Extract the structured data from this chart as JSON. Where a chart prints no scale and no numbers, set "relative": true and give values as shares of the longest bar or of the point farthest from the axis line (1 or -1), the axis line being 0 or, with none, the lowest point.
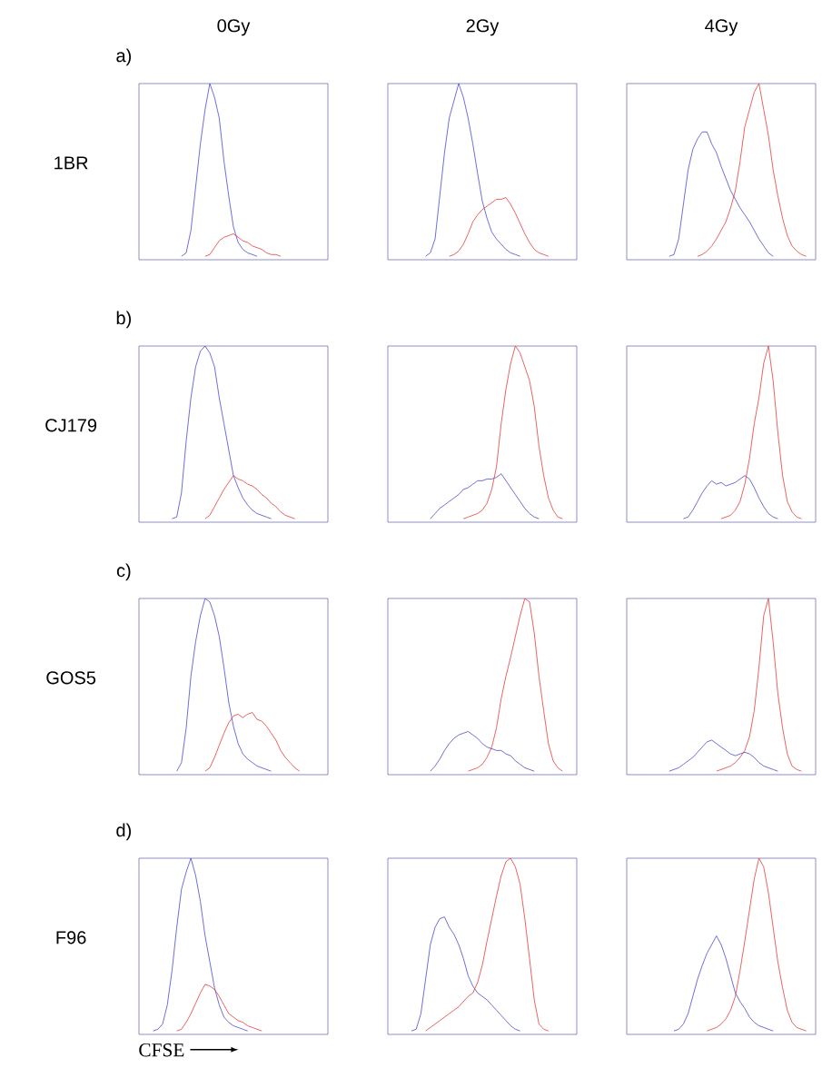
{
  "chart_data": [
    {
      "type": "line",
      "relative": true,
      "title": "0Gy",
      "annotations": [
        "a)",
        "1BR"
      ],
      "categories": [
        null,
        null,
        null,
        null,
        null,
        null,
        null,
        null,
        null,
        null,
        null,
        null,
        null,
        null,
        null,
        null,
        null,
        null,
        null,
        null,
        null,
        null,
        null,
        null,
        null,
        null,
        null,
        null,
        null,
        null,
        null,
        null,
        null,
        null,
        null,
        null,
        null,
        null,
        null,
        null,
        null
      ],
      "series": [
        {
          "color": "#4a4ad0",
          "values": [
            null,
            null,
            null,
            null,
            null,
            null,
            null,
            null,
            null,
            0,
            0.02,
            0.15,
            0.4,
            0.65,
            0.85,
            1,
            0.92,
            0.8,
            0.55,
            0.35,
            0.17,
            0.08,
            0.04,
            0.02,
            0.01,
            0,
            null,
            null,
            null,
            null,
            null,
            null,
            null,
            null,
            null,
            null,
            null,
            null,
            null,
            null,
            null
          ]
        },
        {
          "color": "#e23c3c",
          "values": [
            null,
            null,
            null,
            null,
            null,
            null,
            null,
            null,
            null,
            null,
            null,
            null,
            null,
            null,
            0,
            0.01,
            0.05,
            0.09,
            0.11,
            0.12,
            0.13,
            0.11,
            0.09,
            0.08,
            0.06,
            0.05,
            0.04,
            0.02,
            0.01,
            0.01,
            0,
            null,
            null,
            null,
            null,
            null,
            null,
            null,
            null,
            null,
            null
          ]
        }
      ]
    },
    {
      "type": "line",
      "relative": true,
      "title": "2Gy",
      "categories": [
        null,
        null,
        null,
        null,
        null,
        null,
        null,
        null,
        null,
        null,
        null,
        null,
        null,
        null,
        null,
        null,
        null,
        null,
        null,
        null,
        null,
        null,
        null,
        null,
        null,
        null,
        null,
        null,
        null,
        null,
        null,
        null,
        null,
        null,
        null,
        null,
        null,
        null,
        null,
        null,
        null
      ],
      "series": [
        {
          "color": "#4a4ad0",
          "values": [
            null,
            null,
            null,
            null,
            null,
            null,
            null,
            null,
            0,
            0.02,
            0.1,
            0.35,
            0.6,
            0.8,
            0.9,
            1,
            0.92,
            0.8,
            0.65,
            0.48,
            0.32,
            0.22,
            0.14,
            0.1,
            0.07,
            0.04,
            0.02,
            0.01,
            0,
            null,
            null,
            null,
            null,
            null,
            null,
            null,
            null,
            null,
            null,
            null,
            null
          ]
        },
        {
          "color": "#e23c3c",
          "values": [
            null,
            null,
            null,
            null,
            null,
            null,
            null,
            null,
            null,
            null,
            null,
            null,
            null,
            0,
            0.01,
            0.03,
            0.07,
            0.13,
            0.2,
            0.24,
            0.27,
            0.29,
            0.31,
            0.33,
            0.33,
            0.34,
            0.3,
            0.25,
            0.19,
            0.13,
            0.08,
            0.04,
            0.02,
            0.01,
            0,
            null,
            null,
            null,
            null,
            null,
            null
          ]
        }
      ]
    },
    {
      "type": "line",
      "relative": true,
      "title": "4Gy",
      "categories": [
        null,
        null,
        null,
        null,
        null,
        null,
        null,
        null,
        null,
        null,
        null,
        null,
        null,
        null,
        null,
        null,
        null,
        null,
        null,
        null,
        null,
        null,
        null,
        null,
        null,
        null,
        null,
        null,
        null,
        null,
        null,
        null,
        null,
        null,
        null,
        null,
        null,
        null,
        null,
        null,
        null
      ],
      "series": [
        {
          "color": "#4a4ad0",
          "values": [
            null,
            null,
            null,
            null,
            null,
            null,
            null,
            null,
            null,
            0,
            0.01,
            0.1,
            0.3,
            0.5,
            0.62,
            0.68,
            0.72,
            0.72,
            0.65,
            0.6,
            0.52,
            0.45,
            0.38,
            0.33,
            0.28,
            0.24,
            0.2,
            0.15,
            0.1,
            0.06,
            0.02,
            0,
            null,
            null,
            null,
            null,
            null,
            null,
            null,
            null,
            null
          ]
        },
        {
          "color": "#e23c3c",
          "values": [
            null,
            null,
            null,
            null,
            null,
            null,
            null,
            null,
            null,
            null,
            null,
            null,
            null,
            null,
            null,
            0,
            0.01,
            0.03,
            0.06,
            0.1,
            0.15,
            0.2,
            0.28,
            0.38,
            0.55,
            0.75,
            0.85,
            0.95,
            1,
            0.85,
            0.7,
            0.5,
            0.35,
            0.22,
            0.12,
            0.06,
            0.03,
            0.01,
            0,
            null,
            null
          ]
        }
      ]
    },
    {
      "type": "line",
      "relative": true,
      "annotations": [
        "b)",
        "CJ179"
      ],
      "categories": [
        null,
        null,
        null,
        null,
        null,
        null,
        null,
        null,
        null,
        null,
        null,
        null,
        null,
        null,
        null,
        null,
        null,
        null,
        null,
        null,
        null,
        null,
        null,
        null,
        null,
        null,
        null,
        null,
        null,
        null,
        null,
        null,
        null,
        null,
        null,
        null,
        null,
        null,
        null,
        null,
        null
      ],
      "series": [
        {
          "color": "#4a4ad0",
          "values": [
            null,
            null,
            null,
            null,
            null,
            null,
            null,
            0,
            0.01,
            0.15,
            0.45,
            0.7,
            0.88,
            0.97,
            1,
            0.96,
            0.88,
            0.7,
            0.55,
            0.4,
            0.25,
            0.18,
            0.12,
            0.08,
            0.05,
            0.03,
            0.02,
            0.01,
            0,
            null,
            null,
            null,
            null,
            null,
            null,
            null,
            null,
            null,
            null,
            null,
            null
          ]
        },
        {
          "color": "#e23c3c",
          "values": [
            null,
            null,
            null,
            null,
            null,
            null,
            null,
            null,
            null,
            null,
            null,
            null,
            null,
            null,
            0,
            0.02,
            0.07,
            0.12,
            0.17,
            0.21,
            0.25,
            0.23,
            0.22,
            0.2,
            0.19,
            0.17,
            0.14,
            0.12,
            0.09,
            0.07,
            0.04,
            0.02,
            0.01,
            0,
            null,
            null,
            null,
            null,
            null,
            null,
            null
          ]
        }
      ]
    },
    {
      "type": "line",
      "relative": true,
      "categories": [
        null,
        null,
        null,
        null,
        null,
        null,
        null,
        null,
        null,
        null,
        null,
        null,
        null,
        null,
        null,
        null,
        null,
        null,
        null,
        null,
        null,
        null,
        null,
        null,
        null,
        null,
        null,
        null,
        null,
        null,
        null,
        null,
        null,
        null,
        null,
        null,
        null,
        null,
        null,
        null,
        null
      ],
      "series": [
        {
          "color": "#4a4ad0",
          "values": [
            null,
            null,
            null,
            null,
            null,
            null,
            null,
            null,
            null,
            0,
            0.03,
            0.06,
            0.08,
            0.1,
            0.12,
            0.14,
            0.17,
            0.18,
            0.2,
            0.22,
            0.22,
            0.23,
            0.23,
            0.24,
            0.26,
            0.22,
            0.18,
            0.14,
            0.1,
            0.06,
            0.03,
            0.01,
            0,
            null,
            null,
            null,
            null,
            null,
            null,
            null,
            null
          ]
        },
        {
          "color": "#e23c3c",
          "values": [
            null,
            null,
            null,
            null,
            null,
            null,
            null,
            null,
            null,
            null,
            null,
            null,
            null,
            null,
            null,
            null,
            0,
            0.01,
            0.02,
            0.03,
            0.05,
            0.09,
            0.17,
            0.3,
            0.55,
            0.75,
            0.9,
            1,
            0.96,
            0.88,
            0.8,
            0.65,
            0.42,
            0.25,
            0.12,
            0.05,
            0.01,
            0,
            null,
            null,
            null
          ]
        }
      ]
    },
    {
      "type": "line",
      "relative": true,
      "categories": [
        null,
        null,
        null,
        null,
        null,
        null,
        null,
        null,
        null,
        null,
        null,
        null,
        null,
        null,
        null,
        null,
        null,
        null,
        null,
        null,
        null,
        null,
        null,
        null,
        null,
        null,
        null,
        null,
        null,
        null,
        null,
        null,
        null,
        null,
        null,
        null,
        null,
        null,
        null,
        null,
        null
      ],
      "series": [
        {
          "color": "#4a4ad0",
          "values": [
            null,
            null,
            null,
            null,
            null,
            null,
            null,
            null,
            null,
            null,
            null,
            null,
            0,
            0.01,
            0.05,
            0.1,
            0.15,
            0.19,
            0.22,
            0.2,
            0.21,
            0.19,
            0.2,
            0.21,
            0.23,
            0.25,
            0.23,
            0.18,
            0.12,
            0.07,
            0.03,
            0.01,
            0,
            null,
            null,
            null,
            null,
            null,
            null,
            null,
            null
          ]
        },
        {
          "color": "#e23c3c",
          "values": [
            null,
            null,
            null,
            null,
            null,
            null,
            null,
            null,
            null,
            null,
            null,
            null,
            null,
            null,
            null,
            null,
            null,
            null,
            null,
            null,
            0,
            0.01,
            0.02,
            0.05,
            0.1,
            0.2,
            0.35,
            0.55,
            0.7,
            0.9,
            1,
            0.8,
            0.5,
            0.25,
            0.1,
            0.04,
            0.01,
            0,
            null,
            null,
            null
          ]
        }
      ]
    },
    {
      "type": "line",
      "relative": true,
      "annotations": [
        "c)",
        "GOS5"
      ],
      "categories": [
        null,
        null,
        null,
        null,
        null,
        null,
        null,
        null,
        null,
        null,
        null,
        null,
        null,
        null,
        null,
        null,
        null,
        null,
        null,
        null,
        null,
        null,
        null,
        null,
        null,
        null,
        null,
        null,
        null,
        null,
        null,
        null,
        null,
        null,
        null,
        null,
        null,
        null,
        null,
        null,
        null
      ],
      "series": [
        {
          "color": "#4a4ad0",
          "values": [
            null,
            null,
            null,
            null,
            null,
            null,
            null,
            null,
            0,
            0.05,
            0.25,
            0.55,
            0.75,
            0.9,
            1,
            0.98,
            0.9,
            0.78,
            0.6,
            0.4,
            0.26,
            0.16,
            0.1,
            0.07,
            0.05,
            0.03,
            0.02,
            0.01,
            0,
            null,
            null,
            null,
            null,
            null,
            null,
            null,
            null,
            null,
            null,
            null,
            null
          ]
        },
        {
          "color": "#e23c3c",
          "values": [
            null,
            null,
            null,
            null,
            null,
            null,
            null,
            null,
            null,
            null,
            null,
            null,
            null,
            null,
            0,
            0.02,
            0.08,
            0.15,
            0.22,
            0.28,
            0.32,
            0.33,
            0.31,
            0.33,
            0.34,
            0.3,
            0.29,
            0.26,
            0.22,
            0.18,
            0.12,
            0.08,
            0.05,
            0.02,
            0,
            null,
            null,
            null,
            null,
            null,
            null
          ]
        }
      ]
    },
    {
      "type": "line",
      "relative": true,
      "categories": [
        null,
        null,
        null,
        null,
        null,
        null,
        null,
        null,
        null,
        null,
        null,
        null,
        null,
        null,
        null,
        null,
        null,
        null,
        null,
        null,
        null,
        null,
        null,
        null,
        null,
        null,
        null,
        null,
        null,
        null,
        null,
        null,
        null,
        null,
        null,
        null,
        null,
        null,
        null,
        null,
        null
      ],
      "series": [
        {
          "color": "#4a4ad0",
          "values": [
            null,
            null,
            null,
            null,
            null,
            null,
            null,
            null,
            null,
            0,
            0.03,
            0.07,
            0.12,
            0.16,
            0.19,
            0.21,
            0.22,
            0.23,
            0.21,
            0.19,
            0.16,
            0.14,
            0.13,
            0.12,
            0.12,
            0.1,
            0.09,
            0.06,
            0.04,
            0.02,
            0.01,
            0,
            null,
            null,
            null,
            null,
            null,
            null,
            null,
            null,
            null
          ]
        },
        {
          "color": "#e23c3c",
          "values": [
            null,
            null,
            null,
            null,
            null,
            null,
            null,
            null,
            null,
            null,
            null,
            null,
            null,
            null,
            null,
            null,
            null,
            0,
            0.01,
            0.02,
            0.04,
            0.08,
            0.14,
            0.25,
            0.42,
            0.55,
            0.66,
            0.78,
            0.9,
            1,
            0.98,
            0.8,
            0.55,
            0.35,
            0.16,
            0.06,
            0.02,
            0,
            null,
            null,
            null
          ]
        }
      ]
    },
    {
      "type": "line",
      "relative": true,
      "categories": [
        null,
        null,
        null,
        null,
        null,
        null,
        null,
        null,
        null,
        null,
        null,
        null,
        null,
        null,
        null,
        null,
        null,
        null,
        null,
        null,
        null,
        null,
        null,
        null,
        null,
        null,
        null,
        null,
        null,
        null,
        null,
        null,
        null,
        null,
        null,
        null,
        null,
        null,
        null,
        null,
        null
      ],
      "series": [
        {
          "color": "#4a4ad0",
          "values": [
            null,
            null,
            null,
            null,
            null,
            null,
            null,
            null,
            null,
            0,
            0.01,
            0.02,
            0.04,
            0.06,
            0.08,
            0.11,
            0.14,
            0.17,
            0.18,
            0.16,
            0.14,
            0.12,
            0.1,
            0.09,
            0.1,
            0.11,
            0.1,
            0.08,
            0.05,
            0.03,
            0.02,
            0.01,
            0,
            null,
            null,
            null,
            null,
            null,
            null,
            null,
            null
          ]
        },
        {
          "color": "#e23c3c",
          "values": [
            null,
            null,
            null,
            null,
            null,
            null,
            null,
            null,
            null,
            null,
            null,
            null,
            null,
            null,
            null,
            null,
            null,
            null,
            null,
            0,
            0.01,
            0.02,
            0.03,
            0.05,
            0.08,
            0.12,
            0.2,
            0.35,
            0.6,
            0.9,
            1,
            0.75,
            0.45,
            0.25,
            0.1,
            0.03,
            0.01,
            0,
            null,
            null,
            null
          ]
        }
      ]
    },
    {
      "type": "line",
      "relative": true,
      "annotations": [
        "d)",
        "F96"
      ],
      "xlabel": "CFSE",
      "categories": [
        null,
        null,
        null,
        null,
        null,
        null,
        null,
        null,
        null,
        null,
        null,
        null,
        null,
        null,
        null,
        null,
        null,
        null,
        null,
        null,
        null,
        null,
        null,
        null,
        null,
        null,
        null,
        null,
        null,
        null,
        null,
        null,
        null,
        null,
        null,
        null,
        null,
        null,
        null,
        null,
        null
      ],
      "series": [
        {
          "color": "#4a4ad0",
          "values": [
            null,
            null,
            null,
            0,
            0.01,
            0.04,
            0.15,
            0.35,
            0.6,
            0.82,
            0.92,
            1,
            0.9,
            0.75,
            0.55,
            0.4,
            0.25,
            0.15,
            0.08,
            0.05,
            0.03,
            0.02,
            0.01,
            0,
            null,
            null,
            null,
            null,
            null,
            null,
            null,
            null,
            null,
            null,
            null,
            null,
            null,
            null,
            null,
            null,
            null
          ]
        },
        {
          "color": "#e23c3c",
          "values": [
            null,
            null,
            null,
            null,
            null,
            null,
            null,
            null,
            0,
            0.01,
            0.05,
            0.1,
            0.16,
            0.22,
            0.27,
            0.26,
            0.24,
            0.2,
            0.15,
            0.1,
            0.08,
            0.06,
            0.05,
            0.03,
            0.02,
            0.01,
            0,
            null,
            null,
            null,
            null,
            null,
            null,
            null,
            null,
            null,
            null,
            null,
            null,
            null,
            null
          ]
        }
      ]
    },
    {
      "type": "line",
      "relative": true,
      "categories": [
        null,
        null,
        null,
        null,
        null,
        null,
        null,
        null,
        null,
        null,
        null,
        null,
        null,
        null,
        null,
        null,
        null,
        null,
        null,
        null,
        null,
        null,
        null,
        null,
        null,
        null,
        null,
        null,
        null,
        null,
        null,
        null,
        null,
        null,
        null,
        null,
        null,
        null,
        null,
        null,
        null
      ],
      "series": [
        {
          "color": "#4a4ad0",
          "values": [
            null,
            null,
            null,
            null,
            null,
            0,
            0.01,
            0.1,
            0.3,
            0.5,
            0.6,
            0.65,
            0.66,
            0.6,
            0.56,
            0.5,
            0.42,
            0.32,
            0.26,
            0.22,
            0.2,
            0.18,
            0.15,
            0.12,
            0.09,
            0.06,
            0.03,
            0.01,
            0,
            null,
            null,
            null,
            null,
            null,
            null,
            null,
            null,
            null,
            null,
            null,
            null
          ]
        },
        {
          "color": "#e23c3c",
          "values": [
            null,
            null,
            null,
            null,
            null,
            null,
            null,
            null,
            0,
            0.02,
            0.04,
            0.06,
            0.08,
            0.1,
            0.12,
            0.14,
            0.17,
            0.2,
            0.22,
            0.28,
            0.38,
            0.52,
            0.65,
            0.78,
            0.9,
            0.98,
            1,
            0.95,
            0.85,
            0.65,
            0.42,
            0.18,
            0.04,
            0.01,
            0,
            null,
            null,
            null,
            null,
            null,
            null
          ]
        }
      ]
    },
    {
      "type": "line",
      "relative": true,
      "categories": [
        null,
        null,
        null,
        null,
        null,
        null,
        null,
        null,
        null,
        null,
        null,
        null,
        null,
        null,
        null,
        null,
        null,
        null,
        null,
        null,
        null,
        null,
        null,
        null,
        null,
        null,
        null,
        null,
        null,
        null,
        null,
        null,
        null,
        null,
        null,
        null,
        null,
        null,
        null,
        null,
        null
      ],
      "series": [
        {
          "color": "#4a4ad0",
          "values": [
            null,
            null,
            null,
            null,
            null,
            null,
            null,
            null,
            null,
            null,
            0,
            0.01,
            0.04,
            0.1,
            0.2,
            0.3,
            0.38,
            0.45,
            0.5,
            0.55,
            0.5,
            0.42,
            0.32,
            0.22,
            0.17,
            0.13,
            0.08,
            0.05,
            0.03,
            0.02,
            0.01,
            0,
            null,
            null,
            null,
            null,
            null,
            null,
            null,
            null,
            null
          ]
        },
        {
          "color": "#e23c3c",
          "values": [
            null,
            null,
            null,
            null,
            null,
            null,
            null,
            null,
            null,
            null,
            null,
            null,
            null,
            null,
            null,
            null,
            null,
            0,
            0.01,
            0.02,
            0.04,
            0.07,
            0.12,
            0.2,
            0.35,
            0.52,
            0.7,
            0.88,
            1,
            0.95,
            0.8,
            0.6,
            0.4,
            0.25,
            0.12,
            0.05,
            0.02,
            0.01,
            0,
            null,
            null
          ]
        }
      ]
    }
  ]
}
